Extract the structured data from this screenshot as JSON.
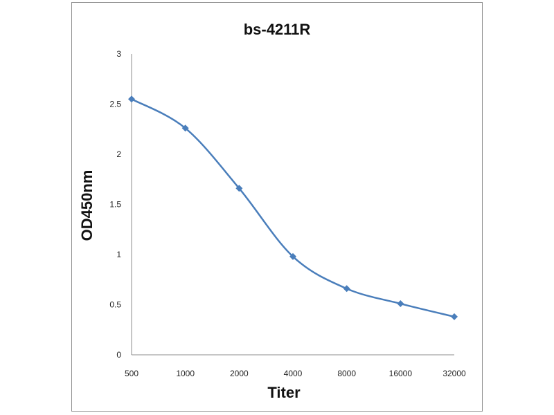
{
  "chart_data": {
    "type": "line",
    "title": "bs-4211R",
    "xlabel": "Titer",
    "ylabel": "OD450nm",
    "categories": [
      "500",
      "1000",
      "2000",
      "4000",
      "8000",
      "16000",
      "32000"
    ],
    "series": [
      {
        "values": [
          2.55,
          2.26,
          1.66,
          0.98,
          0.66,
          0.51,
          0.38
        ]
      }
    ],
    "ylim": [
      0,
      3
    ],
    "yticks": [
      "0",
      "0.5",
      "1",
      "1.5",
      "2",
      "2.5",
      "3"
    ],
    "grid": false,
    "legend": "none",
    "colors": {
      "line": "#4a7ebb",
      "marker": "#4a7ebb"
    }
  }
}
